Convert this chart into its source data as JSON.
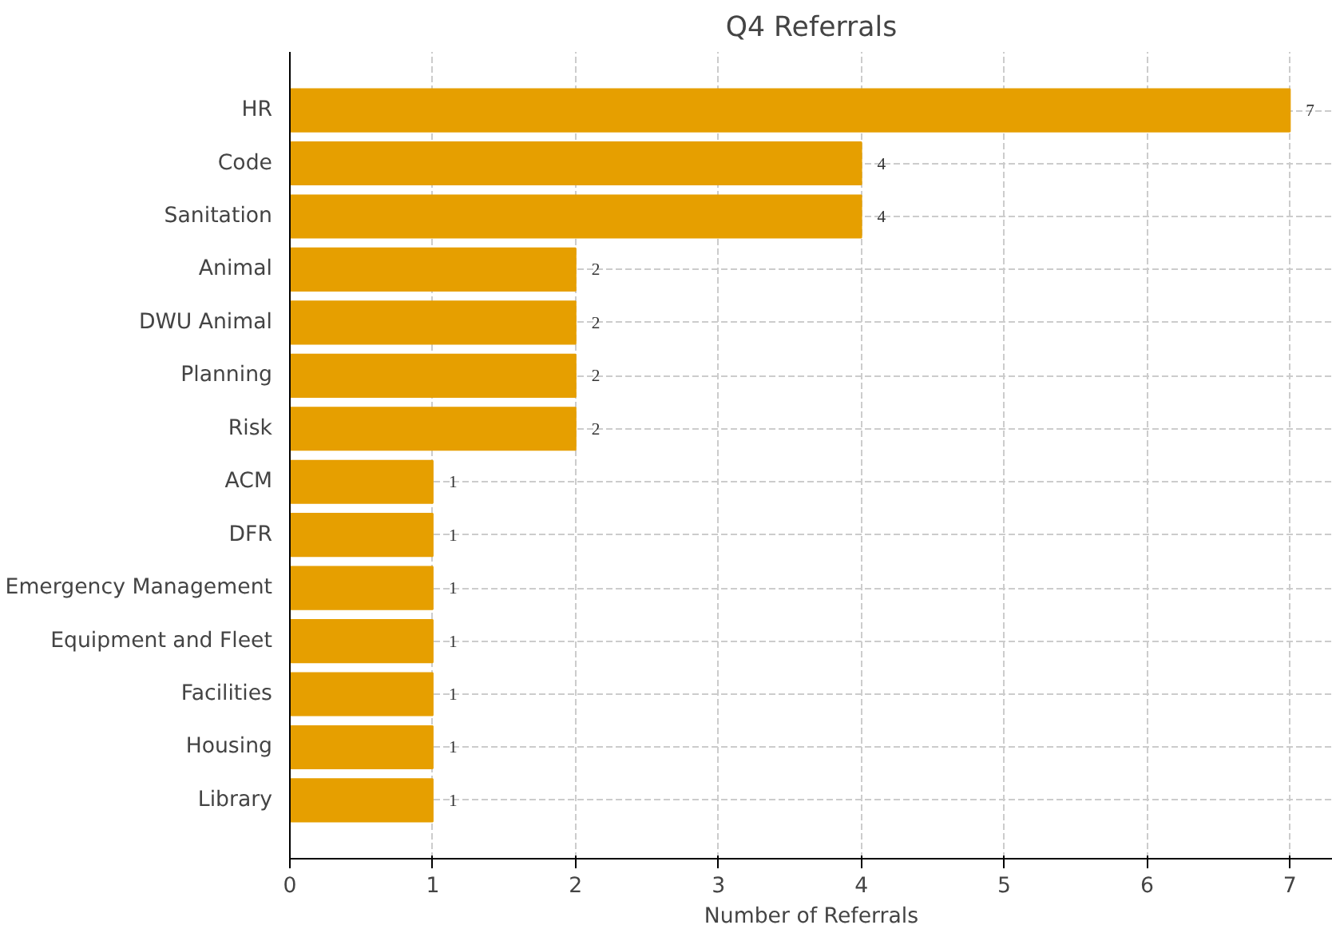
{
  "chart_data": {
    "type": "bar",
    "orientation": "horizontal",
    "title": "Q4 Referrals",
    "xlabel": "Number of Referrals",
    "categories": [
      "HR",
      "Code",
      "Sanitation",
      "Animal",
      "DWU Animal",
      "Planning",
      "Risk",
      "ACM",
      "DFR",
      "Emergency Management",
      "Equipment and Fleet",
      "Facilities",
      "Housing",
      "Library"
    ],
    "values": [
      7,
      4,
      4,
      2,
      2,
      2,
      2,
      1,
      1,
      1,
      1,
      1,
      1,
      1
    ],
    "color": "#e69f00",
    "xlim": [
      0,
      7.3
    ],
    "xticks": [
      0,
      1,
      2,
      3,
      4,
      5,
      6,
      7
    ],
    "grid": true,
    "data_labels": true
  }
}
